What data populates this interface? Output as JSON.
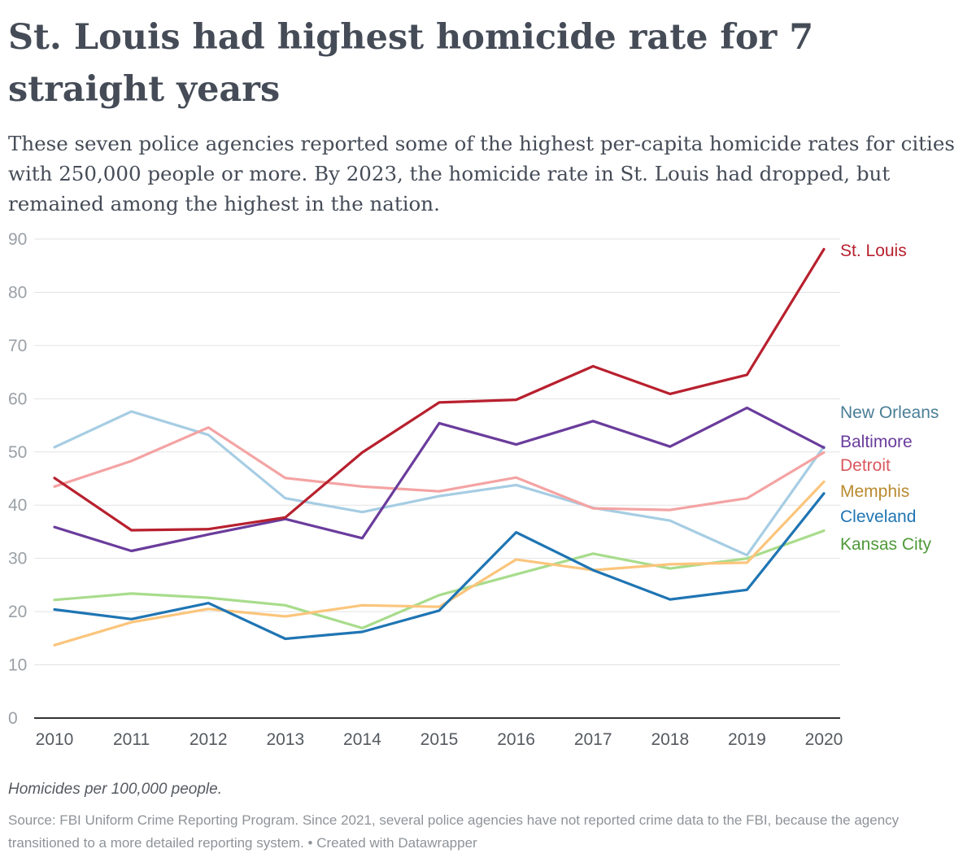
{
  "chart_data": {
    "type": "line",
    "title": "St. Louis had highest homicide rate for 7 straight years",
    "subtitle": "These seven police agencies reported some of the highest per-capita homicide rates for cities with 250,000 people or more. By 2023, the homicide rate in St. Louis had dropped, but remained among the highest in the nation.",
    "note": "Homicides per 100,000 people.",
    "source": "Source: FBI Uniform Crime Reporting Program. Since 2021, several police agencies have not reported crime data to the FBI, because the agency transitioned to a more detailed reporting system. • Created with Datawrapper",
    "x": [
      "2010",
      "2011",
      "2012",
      "2013",
      "2014",
      "2015",
      "2016",
      "2017",
      "2018",
      "2019",
      "2020"
    ],
    "ylim": [
      0,
      90
    ],
    "yticks": [
      "0",
      "10",
      "20",
      "30",
      "40",
      "50",
      "60",
      "70",
      "80",
      "90"
    ],
    "grid": true,
    "legend": "right, direct labels",
    "series": [
      {
        "name": "New Orleans",
        "color": "#a6cde3",
        "label_color": "#4a7e96",
        "values": [
          50.9,
          57.6,
          53.2,
          41.3,
          38.7,
          41.7,
          43.8,
          39.5,
          37.1,
          30.6,
          51.0
        ]
      },
      {
        "name": "Kansas City",
        "color": "#a8dc8c",
        "label_color": "#4f9a3a",
        "values": [
          22.2,
          23.4,
          22.6,
          21.2,
          16.9,
          23.1,
          27.0,
          30.9,
          28.1,
          30.0,
          35.2
        ]
      },
      {
        "name": "Memphis",
        "color": "#fbc57c",
        "label_color": "#b98a2e",
        "values": [
          13.7,
          18.0,
          20.5,
          19.1,
          21.2,
          20.9,
          29.8,
          27.8,
          28.9,
          29.2,
          44.4
        ]
      },
      {
        "name": "Detroit",
        "color": "#f4a3a3",
        "label_color": "#d9585f",
        "values": [
          43.5,
          48.3,
          54.6,
          45.1,
          43.5,
          42.6,
          45.2,
          39.4,
          39.1,
          41.3,
          49.9
        ]
      },
      {
        "name": "Cleveland",
        "color": "#1f75b3",
        "label_color": "#1f75b3",
        "values": [
          20.4,
          18.6,
          21.6,
          14.9,
          16.2,
          20.2,
          34.9,
          27.8,
          22.3,
          24.1,
          42.2
        ]
      },
      {
        "name": "Baltimore",
        "color": "#6a3c9c",
        "label_color": "#6a3c9c",
        "values": [
          35.9,
          31.4,
          34.5,
          37.4,
          33.8,
          55.4,
          51.4,
          55.8,
          51.0,
          58.3,
          50.8
        ]
      },
      {
        "name": "St. Louis",
        "color": "#b8202e",
        "label_color": "#b8202e",
        "values": [
          45.1,
          35.3,
          35.5,
          37.7,
          49.9,
          59.3,
          59.8,
          66.1,
          60.9,
          64.5,
          88.1
        ]
      }
    ]
  }
}
